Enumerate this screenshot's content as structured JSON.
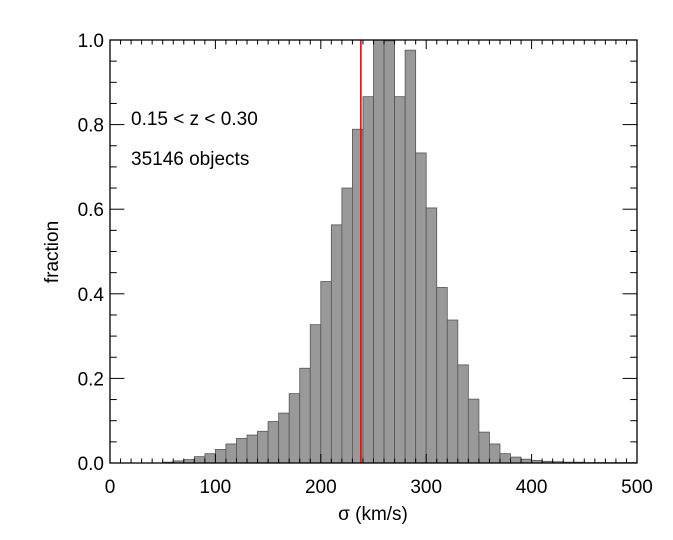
{
  "chart_data": {
    "type": "bar",
    "xlabel": "σ (km/s)",
    "ylabel": "fraction",
    "xlim": [
      0,
      500
    ],
    "ylim": [
      0,
      1.0
    ],
    "x_ticks": [
      "0",
      "100",
      "200",
      "300",
      "400",
      "500"
    ],
    "y_ticks": [
      "0.0",
      "0.2",
      "0.4",
      "0.6",
      "0.8",
      "1.0"
    ],
    "annotations": [
      "0.15 < z < 0.30",
      "35146 objects"
    ],
    "bin_width": 10,
    "bin_starts": [
      50,
      60,
      70,
      80,
      90,
      100,
      110,
      120,
      130,
      140,
      150,
      160,
      170,
      180,
      190,
      200,
      210,
      220,
      230,
      240,
      250,
      260,
      270,
      280,
      290,
      300,
      310,
      320,
      330,
      340,
      350,
      360,
      370,
      380,
      390,
      400,
      410,
      420,
      430,
      440,
      450,
      460,
      470,
      480,
      490
    ],
    "values": [
      0.002,
      0.005,
      0.008,
      0.015,
      0.022,
      0.032,
      0.045,
      0.058,
      0.066,
      0.075,
      0.098,
      0.118,
      0.164,
      0.224,
      0.327,
      0.429,
      0.563,
      0.65,
      0.789,
      0.866,
      1.0,
      0.998,
      0.866,
      0.976,
      0.733,
      0.603,
      0.415,
      0.338,
      0.232,
      0.151,
      0.073,
      0.045,
      0.022,
      0.014,
      0.009,
      0.006,
      0.004,
      0.003,
      0.002,
      0.002,
      0.001,
      0.001,
      0.001,
      0.001,
      0.001
    ],
    "reference_line": {
      "x": 238,
      "color": "#ff0000"
    },
    "bar_color": "#999999",
    "bar_edge_color": "#555555"
  }
}
